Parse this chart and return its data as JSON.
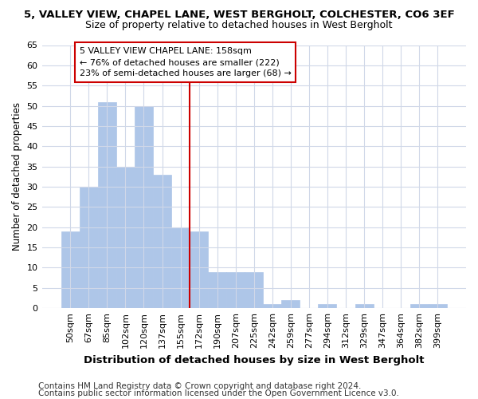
{
  "title1": "5, VALLEY VIEW, CHAPEL LANE, WEST BERGHOLT, COLCHESTER, CO6 3EF",
  "title2": "Size of property relative to detached houses in West Bergholt",
  "xlabel": "Distribution of detached houses by size in West Bergholt",
  "ylabel": "Number of detached properties",
  "categories": [
    "50sqm",
    "67sqm",
    "85sqm",
    "102sqm",
    "120sqm",
    "137sqm",
    "155sqm",
    "172sqm",
    "190sqm",
    "207sqm",
    "225sqm",
    "242sqm",
    "259sqm",
    "277sqm",
    "294sqm",
    "312sqm",
    "329sqm",
    "347sqm",
    "364sqm",
    "382sqm",
    "399sqm"
  ],
  "values": [
    19,
    30,
    51,
    35,
    50,
    33,
    20,
    19,
    9,
    9,
    9,
    1,
    2,
    0,
    1,
    0,
    1,
    0,
    0,
    1,
    1
  ],
  "bar_color": "#aec6e8",
  "bar_edge_color": "#aec6e8",
  "vline_index": 6,
  "vline_color": "#cc0000",
  "annotation_text": "5 VALLEY VIEW CHAPEL LANE: 158sqm\n← 76% of detached houses are smaller (222)\n23% of semi-detached houses are larger (68) →",
  "annotation_box_color": "#ffffff",
  "annotation_box_edge": "#cc0000",
  "ylim": [
    0,
    65
  ],
  "yticks": [
    0,
    5,
    10,
    15,
    20,
    25,
    30,
    35,
    40,
    45,
    50,
    55,
    60,
    65
  ],
  "footer1": "Contains HM Land Registry data © Crown copyright and database right 2024.",
  "footer2": "Contains public sector information licensed under the Open Government Licence v3.0.",
  "background_color": "#ffffff",
  "plot_bg_color": "#ffffff",
  "grid_color": "#d0d8e8",
  "title1_fontsize": 9.5,
  "title2_fontsize": 9,
  "xlabel_fontsize": 9.5,
  "ylabel_fontsize": 8.5,
  "tick_fontsize": 8,
  "annotation_fontsize": 8,
  "footer_fontsize": 7.5
}
